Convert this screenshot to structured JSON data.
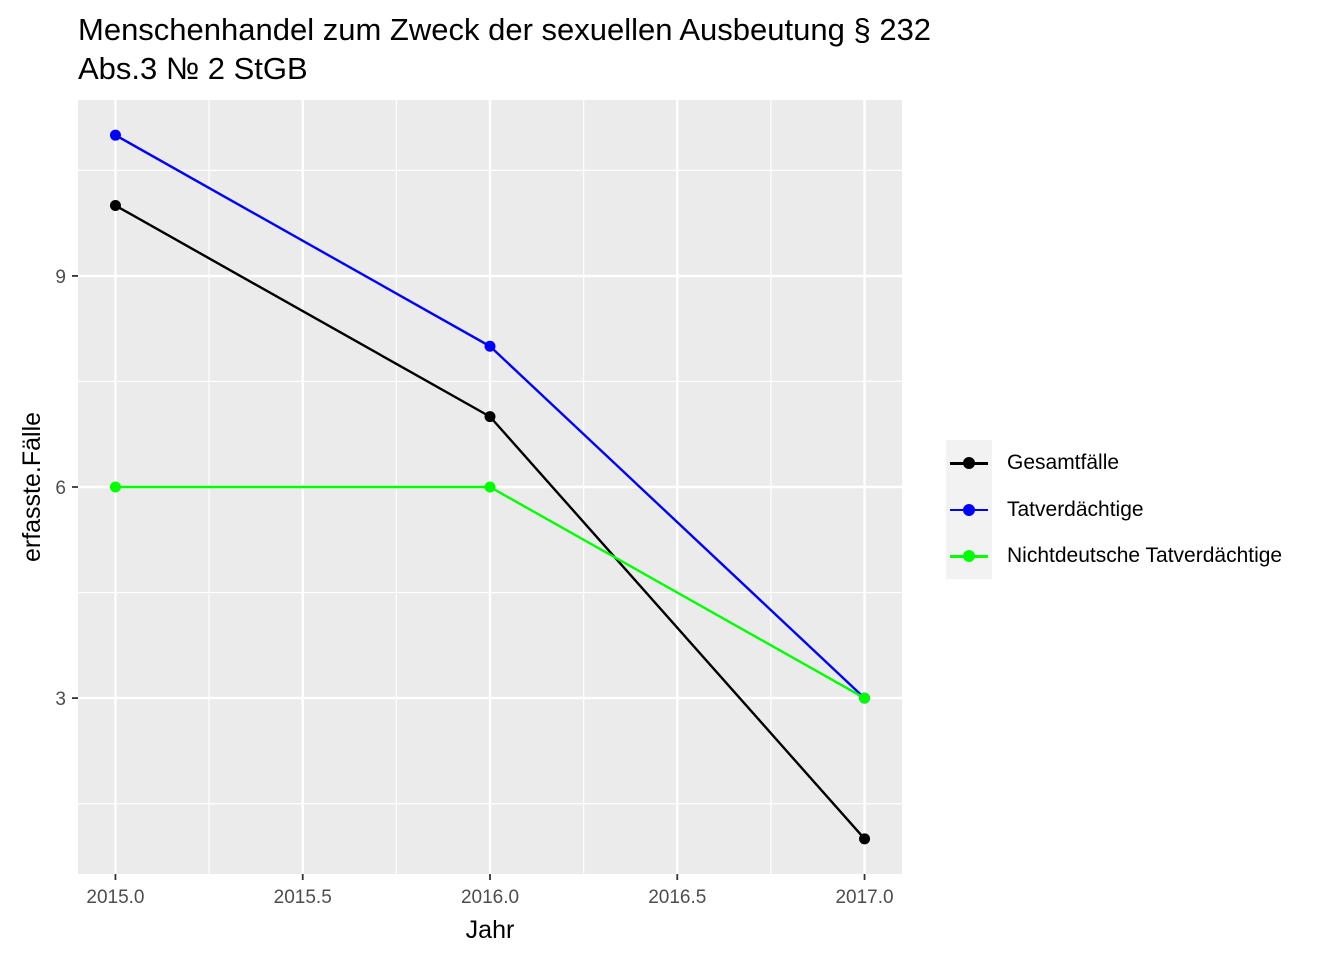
{
  "title": {
    "line1": "Menschenhandel zum Zweck der sexuellen Ausbeutung § 232",
    "line2": "Abs.3 № 2 StGB"
  },
  "chart_data": {
    "type": "line",
    "xlabel": "Jahr",
    "ylabel": "erfasste.Fälle",
    "xlim": [
      2014.9,
      2017.1
    ],
    "ylim": [
      0.5,
      11.5
    ],
    "x_ticks": [
      "2015.0",
      "2015.5",
      "2016.0",
      "2016.5",
      "2017.0"
    ],
    "x_tick_values": [
      2015,
      2015.5,
      2016,
      2016.5,
      2017
    ],
    "y_ticks": [
      "3",
      "6",
      "9"
    ],
    "y_tick_values": [
      3,
      6,
      9
    ],
    "grid": true,
    "legend_position": "right",
    "x": [
      2015,
      2016,
      2017
    ],
    "series": [
      {
        "name": "Gesamtfälle",
        "values": [
          10,
          7,
          1
        ],
        "color": "#000000"
      },
      {
        "name": "Tatverdächtige",
        "values": [
          11,
          8,
          3
        ],
        "color": "#0000ff"
      },
      {
        "name": "Nichtdeutsche Tatverdächtige",
        "values": [
          6,
          6,
          3
        ],
        "color": "#00ff00"
      }
    ]
  }
}
